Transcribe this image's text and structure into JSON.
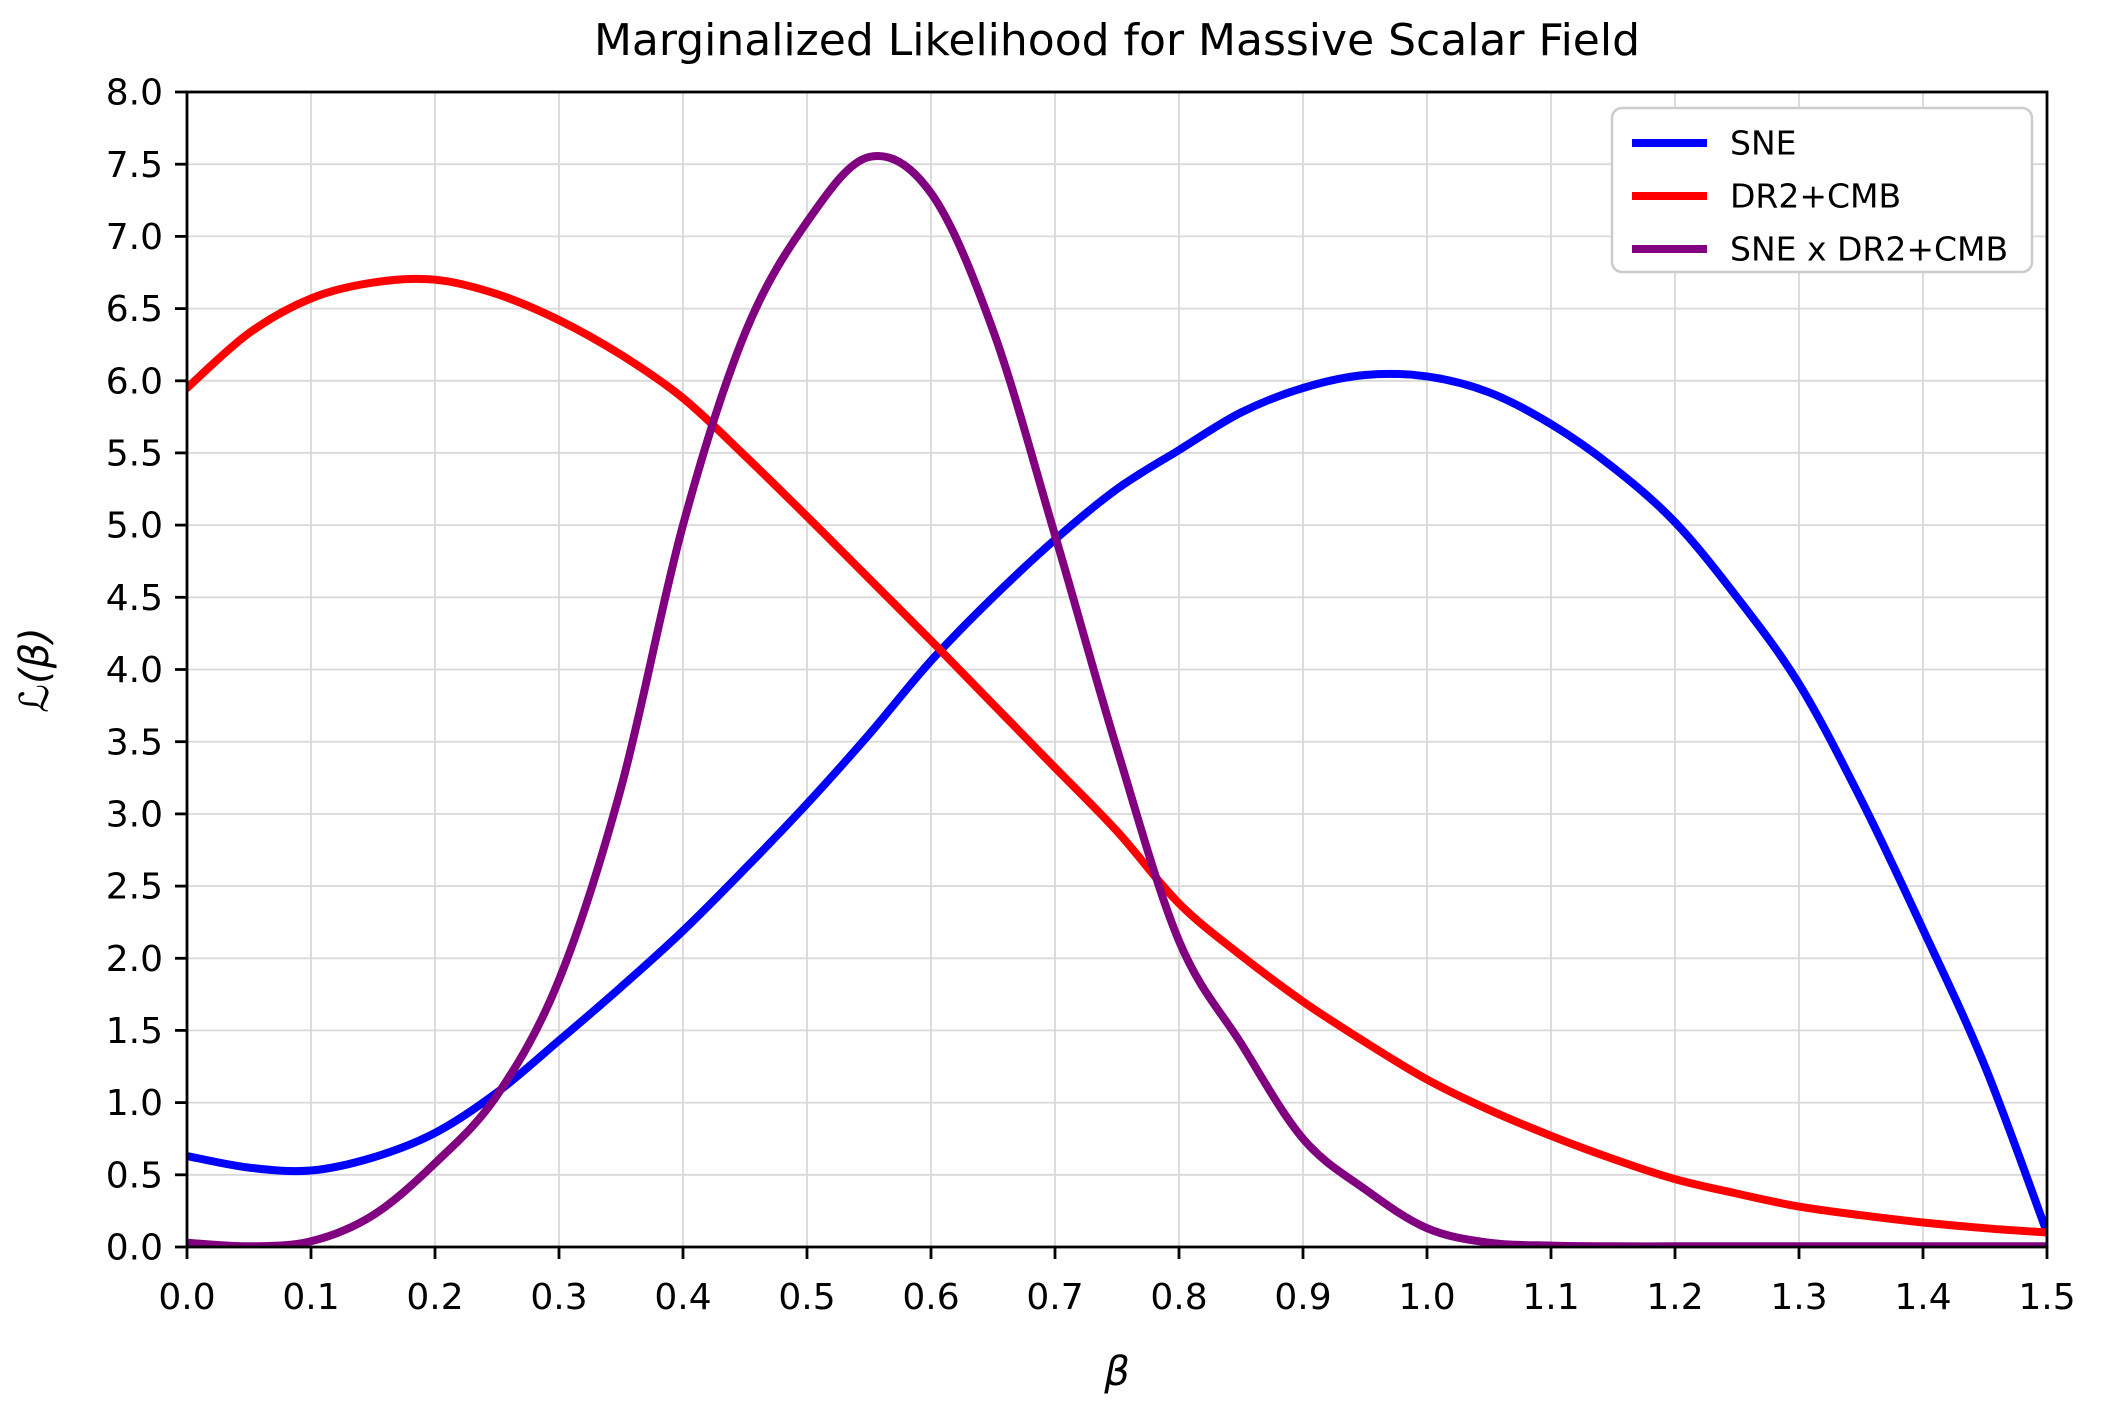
{
  "chart_data": {
    "type": "line",
    "title": "Marginalized Likelihood for Massive Scalar Field",
    "xlabel": "β",
    "ylabel": "ℒ(β)",
    "xlim": [
      0,
      1.5
    ],
    "ylim": [
      0,
      8
    ],
    "grid": true,
    "legend_position": "upper right",
    "x_tick_labels": [
      "0.0",
      "0.1",
      "0.2",
      "0.3",
      "0.4",
      "0.5",
      "0.6",
      "0.7",
      "0.8",
      "0.9",
      "1.0",
      "1.1",
      "1.2",
      "1.3",
      "1.4",
      "1.5"
    ],
    "x_tick_values": [
      0,
      0.1,
      0.2,
      0.3,
      0.4,
      0.5,
      0.6,
      0.7,
      0.8,
      0.9,
      1.0,
      1.1,
      1.2,
      1.3,
      1.4,
      1.5
    ],
    "y_tick_labels": [
      "0.0",
      "0.5",
      "1.0",
      "1.5",
      "2.0",
      "2.5",
      "3.0",
      "3.5",
      "4.0",
      "4.5",
      "5.0",
      "5.5",
      "6.0",
      "6.5",
      "7.0",
      "7.5",
      "8.0"
    ],
    "y_tick_values": [
      0,
      0.5,
      1.0,
      1.5,
      2.0,
      2.5,
      3.0,
      3.5,
      4.0,
      4.5,
      5.0,
      5.5,
      6.0,
      6.5,
      7.0,
      7.5,
      8.0
    ],
    "x": [
      0,
      0.05,
      0.1,
      0.15,
      0.2,
      0.25,
      0.3,
      0.35,
      0.4,
      0.45,
      0.5,
      0.55,
      0.6,
      0.65,
      0.7,
      0.75,
      0.8,
      0.85,
      0.9,
      0.95,
      1.0,
      1.05,
      1.1,
      1.15,
      1.2,
      1.25,
      1.3,
      1.35,
      1.4,
      1.45,
      1.5
    ],
    "series": [
      {
        "name": "SNE",
        "color": "#0000ff",
        "peak": {
          "x": 0.97,
          "y": 6.05
        },
        "values": [
          0.63,
          0.55,
          0.53,
          0.62,
          0.79,
          1.07,
          1.43,
          1.8,
          2.19,
          2.62,
          3.07,
          3.55,
          4.06,
          4.5,
          4.9,
          5.25,
          5.52,
          5.78,
          5.95,
          6.04,
          6.03,
          5.92,
          5.7,
          5.4,
          5.02,
          4.5,
          3.9,
          3.1,
          2.2,
          1.25,
          0.1
        ]
      },
      {
        "name": "DR2+CMB",
        "color": "#ff0000",
        "peak": {
          "x": 0.18,
          "y": 6.7
        },
        "values": [
          5.95,
          6.33,
          6.57,
          6.68,
          6.7,
          6.6,
          6.42,
          6.18,
          5.88,
          5.48,
          5.06,
          4.63,
          4.2,
          3.76,
          3.32,
          2.88,
          2.38,
          2.02,
          1.7,
          1.42,
          1.16,
          0.95,
          0.77,
          0.61,
          0.47,
          0.37,
          0.28,
          0.22,
          0.17,
          0.13,
          0.1
        ]
      },
      {
        "name": "SNE x DR2+CMB",
        "color": "#800080",
        "peak": {
          "x": 0.56,
          "y": 7.58
        },
        "values": [
          0.03,
          0.005,
          0.04,
          0.22,
          0.58,
          1.05,
          1.85,
          3.18,
          5.0,
          6.33,
          7.1,
          7.55,
          7.3,
          6.35,
          4.93,
          3.45,
          2.12,
          1.41,
          0.75,
          0.4,
          0.13,
          0.03,
          0.01,
          0.005,
          0.005,
          0.005,
          0.005,
          0.005,
          0.005,
          0.005,
          0.005
        ]
      }
    ],
    "colors": {
      "grid": "#d9d9d9",
      "spine": "#000000",
      "background": "#ffffff",
      "legend_border": "#cccccc"
    }
  }
}
